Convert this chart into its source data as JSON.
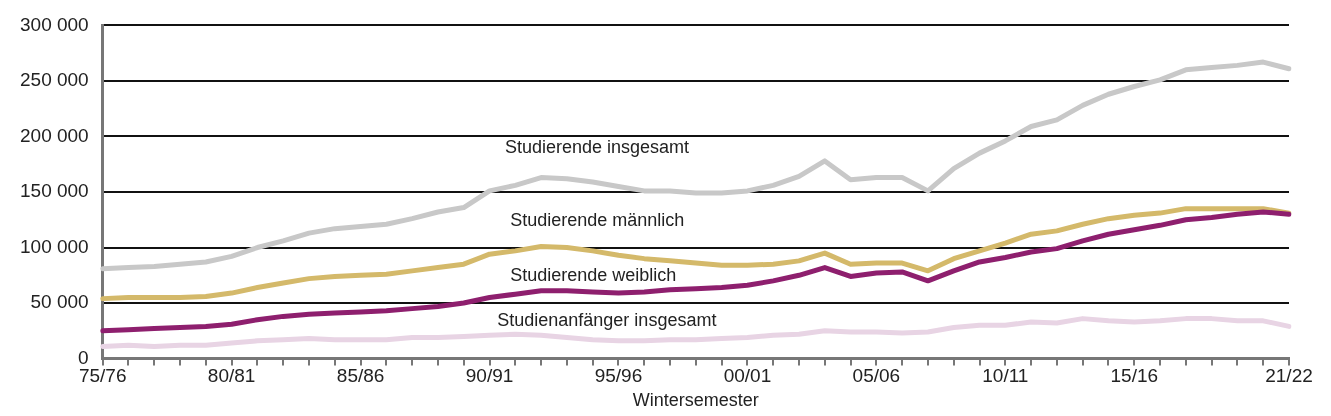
{
  "chart_data": {
    "type": "line",
    "xlabel": "Wintersemester",
    "categories": [
      "75/76",
      null,
      null,
      null,
      null,
      "80/81",
      null,
      null,
      null,
      null,
      "85/86",
      null,
      null,
      null,
      null,
      "90/91",
      null,
      null,
      null,
      null,
      "95/96",
      null,
      null,
      null,
      null,
      "00/01",
      null,
      null,
      null,
      null,
      "05/06",
      null,
      null,
      null,
      null,
      "10/11",
      null,
      null,
      null,
      null,
      "15/16",
      null,
      null,
      null,
      null,
      null,
      "21/22"
    ],
    "series": [
      {
        "name": "Studierende insgesamt",
        "color": "#c8c8c8",
        "values": [
          81000,
          82000,
          83000,
          85000,
          87000,
          92000,
          100000,
          106000,
          113000,
          117000,
          119000,
          121000,
          126000,
          132000,
          136000,
          151000,
          156000,
          163000,
          162000,
          159000,
          155000,
          151000,
          151000,
          149000,
          149000,
          151000,
          156000,
          164000,
          178000,
          161000,
          163000,
          163000,
          151000,
          171000,
          185000,
          196000,
          209000,
          215000,
          228000,
          238000,
          245000,
          251000,
          260000,
          262000,
          264000,
          267000,
          261000
        ]
      },
      {
        "name": "Studierende männlich",
        "color": "#d4b96a",
        "values": [
          54000,
          55000,
          55000,
          55000,
          56000,
          59000,
          64000,
          68000,
          72000,
          74000,
          75000,
          76000,
          79000,
          82000,
          85000,
          94000,
          97000,
          101000,
          100000,
          97000,
          93000,
          90000,
          88000,
          86000,
          84000,
          84000,
          85000,
          88000,
          95000,
          85000,
          86000,
          86000,
          79000,
          90000,
          97000,
          104000,
          112000,
          115000,
          121000,
          126000,
          129000,
          131000,
          135000,
          135000,
          135000,
          135000,
          131000
        ]
      },
      {
        "name": "Studierende weiblich",
        "color": "#8e1f6e",
        "values": [
          25000,
          26000,
          27000,
          28000,
          29000,
          31000,
          35000,
          38000,
          40000,
          41000,
          42000,
          43000,
          45000,
          47000,
          50000,
          55000,
          58000,
          61000,
          61000,
          60000,
          59000,
          60000,
          62000,
          63000,
          64000,
          66000,
          70000,
          75000,
          82000,
          74000,
          77000,
          78000,
          70000,
          79000,
          87000,
          91000,
          96000,
          99000,
          106000,
          112000,
          116000,
          120000,
          125000,
          127000,
          130000,
          132000,
          130000
        ]
      },
      {
        "name": "Studienanfänger insgesamt",
        "color": "#e8d4e4",
        "values": [
          11000,
          12000,
          11000,
          12000,
          12000,
          14000,
          16000,
          17000,
          18000,
          17000,
          17000,
          17000,
          19000,
          19000,
          20000,
          21000,
          22000,
          21000,
          19000,
          17000,
          16000,
          16000,
          17000,
          17000,
          18000,
          19000,
          21000,
          22000,
          25000,
          24000,
          24000,
          23000,
          24000,
          28000,
          30000,
          30000,
          33000,
          32000,
          36000,
          34000,
          33000,
          34000,
          36000,
          36000,
          34000,
          34000,
          29000
        ]
      }
    ],
    "ylim": [
      0,
      300000
    ],
    "yticks": [
      0,
      {
        "value": 50000,
        "label": "50 000"
      },
      {
        "value": 100000,
        "label": "100 000"
      },
      {
        "value": 150000,
        "label": "150 000"
      },
      {
        "value": 200000,
        "label": "200 000"
      },
      {
        "value": 250000,
        "label": "250 000"
      },
      {
        "value": 300000,
        "label": "300 000"
      }
    ],
    "grid": "y",
    "legend": false,
    "marker": "none",
    "line_style": "solid"
  }
}
